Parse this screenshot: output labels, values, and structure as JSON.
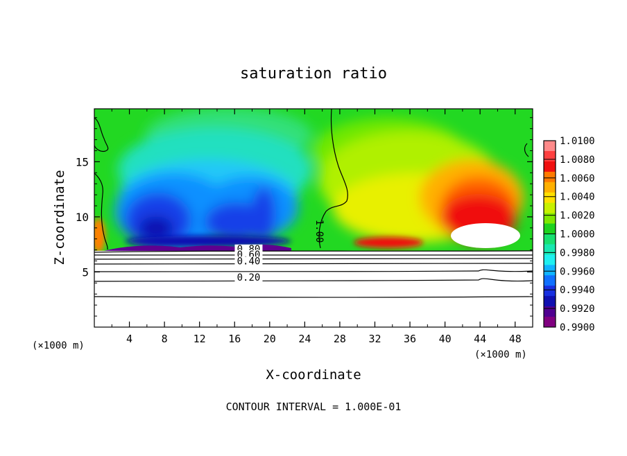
{
  "chart_data": {
    "type": "heatmap",
    "title": "saturation ratio",
    "xlabel": "X-coordinate",
    "ylabel": "Z-coordinate",
    "x_unit_left": "(×1000 m)",
    "x_unit_right": "(×1000 m)",
    "footer": "CONTOUR INTERVAL = 1.000E-01",
    "xlim": [
      0,
      50
    ],
    "ylim": [
      0,
      19.8
    ],
    "x_ticks": [
      4,
      8,
      12,
      16,
      20,
      24,
      28,
      32,
      36,
      40,
      44,
      48
    ],
    "y_ticks": [
      5,
      10,
      15
    ],
    "colorbar": {
      "levels": [
        "1.0100",
        "1.0080",
        "1.0060",
        "1.0040",
        "1.0020",
        "1.0000",
        "0.9980",
        "0.9960",
        "0.9940",
        "0.9920",
        "0.9900"
      ],
      "colors": [
        "#ff8a8a",
        "#ff4040",
        "#f01010",
        "#ff7a00",
        "#ffb000",
        "#ffe000",
        "#c8f000",
        "#80e800",
        "#1ed21e",
        "#18e070",
        "#18e8b0",
        "#20f0f0",
        "#10b4ff",
        "#1070ff",
        "#1830e0",
        "#1010b0",
        "#500090",
        "#800080"
      ]
    },
    "contour_labels": [
      {
        "text": "0.80",
        "x": 17.6,
        "z": 6.8
      },
      {
        "text": "0.60",
        "x": 17.6,
        "z": 6.3
      },
      {
        "text": "0.40",
        "x": 17.6,
        "z": 5.7
      },
      {
        "text": "0.20",
        "x": 17.6,
        "z": 4.2
      },
      {
        "text": "1.00",
        "x": 25.3,
        "z": 8.7
      }
    ]
  }
}
